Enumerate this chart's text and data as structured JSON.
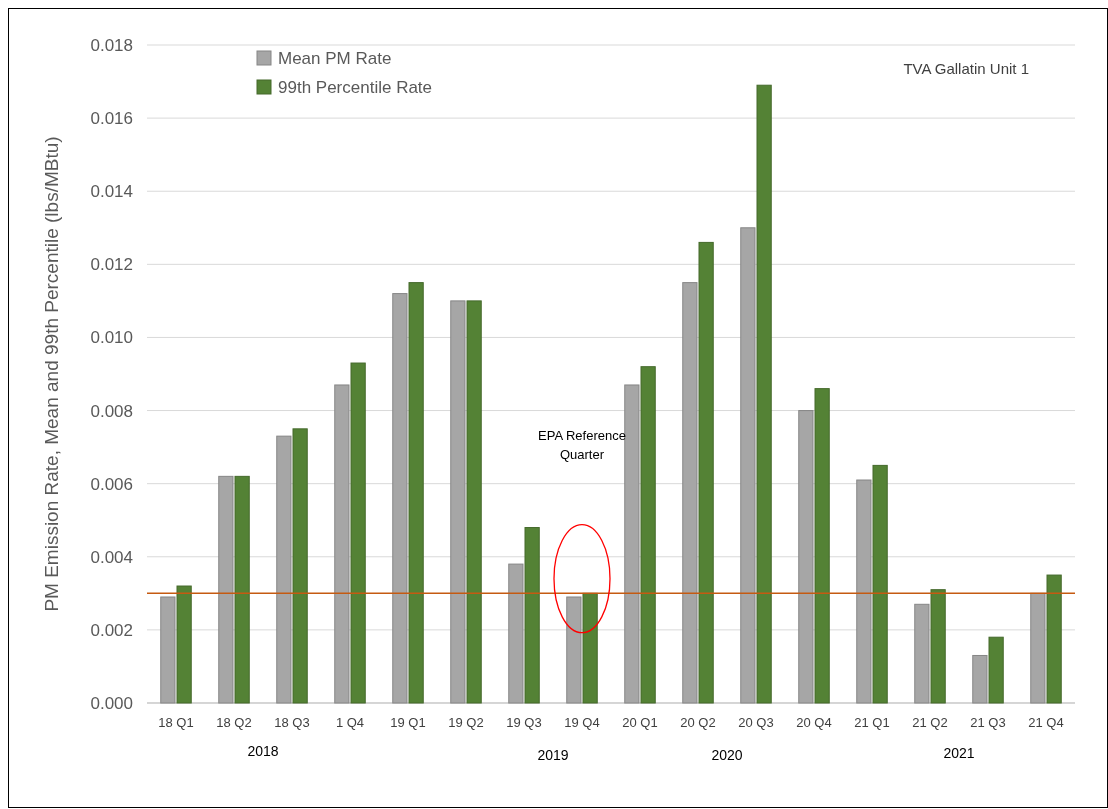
{
  "chart_data": {
    "type": "bar",
    "title": "TVA Gallatin Unit 1",
    "ylabel": "PM Emission Rate, Mean and 99th Percentile (lbs/MBtu)",
    "categories": [
      "18 Q1",
      "18 Q2",
      "18 Q3",
      "1 Q4",
      "19 Q1",
      "19 Q2",
      "19 Q3",
      "19 Q4",
      "20 Q1",
      "20 Q2",
      "20 Q3",
      "20 Q4",
      "21 Q1",
      "21 Q2",
      "21 Q3",
      "21 Q4"
    ],
    "series": [
      {
        "name": "Mean PM Rate",
        "color": "#a6a6a6",
        "values": [
          0.0029,
          0.0062,
          0.0073,
          0.0087,
          0.0112,
          0.011,
          0.0038,
          0.0029,
          0.0087,
          0.0115,
          0.013,
          0.008,
          0.0061,
          0.0027,
          0.0013,
          0.003
        ]
      },
      {
        "name": "99th Percentile Rate",
        "color": "#548235",
        "values": [
          0.0032,
          0.0062,
          0.0075,
          0.0093,
          0.0115,
          0.011,
          0.0048,
          0.003,
          0.0092,
          0.0126,
          0.0169,
          0.0086,
          0.0065,
          0.0031,
          0.0018,
          0.0035
        ]
      }
    ],
    "ylim": [
      0,
      0.018
    ],
    "yticks": [
      {
        "value": 0,
        "label": "0.000"
      },
      {
        "value": 0.002,
        "label": "0.002"
      },
      {
        "value": 0.004,
        "label": "0.004"
      },
      {
        "value": 0.006,
        "label": "0.006"
      },
      {
        "value": 0.008,
        "label": "0.008"
      },
      {
        "value": 0.01,
        "label": "0.010"
      },
      {
        "value": 0.012,
        "label": "0.012"
      },
      {
        "value": 0.014,
        "label": "0.014"
      },
      {
        "value": 0.016,
        "label": "0.016"
      },
      {
        "value": 0.018,
        "label": "0.018"
      }
    ],
    "grid": "y",
    "legend": "top left",
    "ref_lines": [
      {
        "axis": "y",
        "value": 0.003,
        "color": "#c55a11"
      }
    ],
    "annotations": [
      "EPA Reference Quarter",
      "2018",
      "2019",
      "2020",
      "2021"
    ]
  }
}
